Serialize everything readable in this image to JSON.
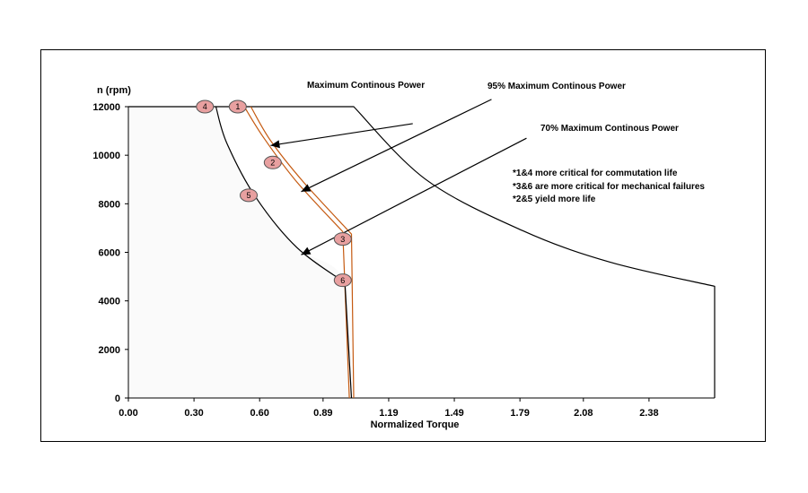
{
  "chart_data": {
    "type": "line",
    "xlabel": "Normalized Torque",
    "ylabel": "n (rpm)",
    "xlim": [
      0,
      2.68
    ],
    "ylim": [
      0,
      12000
    ],
    "x_ticks": [
      "0.00",
      "0.30",
      "0.60",
      "0.89",
      "1.19",
      "1.49",
      "1.79",
      "2.08",
      "2.38"
    ],
    "x_tick_values": [
      0,
      0.3,
      0.6,
      0.89,
      1.19,
      1.49,
      1.79,
      2.08,
      2.38
    ],
    "y_ticks": [
      "0",
      "2000",
      "4000",
      "6000",
      "8000",
      "10000",
      "12000"
    ],
    "y_tick_values": [
      0,
      2000,
      4000,
      6000,
      8000,
      10000,
      12000
    ],
    "grid": false,
    "series": [
      {
        "key": "envelope",
        "color": "#000000",
        "points": [
          [
            0,
            12000
          ],
          [
            1.03,
            12000
          ],
          [
            1.36,
            9000
          ],
          [
            1.8,
            6900
          ],
          [
            2.2,
            5600
          ],
          [
            2.68,
            4600
          ],
          [
            2.68,
            0
          ]
        ]
      },
      {
        "key": "max_continuous",
        "color": "#c55a11",
        "points": [
          [
            0.56,
            12000
          ],
          [
            0.65,
            10600
          ],
          [
            0.8,
            8900
          ],
          [
            1.02,
            6750
          ],
          [
            1.03,
            0
          ]
        ]
      },
      {
        "key": "p95",
        "color": "#c55a11",
        "points": [
          [
            0.53,
            12000
          ],
          [
            0.62,
            10700
          ],
          [
            0.77,
            8900
          ],
          [
            0.98,
            6850
          ],
          [
            1.01,
            0
          ]
        ]
      },
      {
        "key": "p70",
        "color": "#000000",
        "points": [
          [
            0.4,
            12000
          ],
          [
            0.45,
            10500
          ],
          [
            0.58,
            8300
          ],
          [
            0.77,
            6200
          ],
          [
            0.99,
            4750
          ],
          [
            1.02,
            0
          ]
        ]
      }
    ],
    "markers": [
      {
        "label": "1",
        "x": 0.5,
        "y": 12000
      },
      {
        "label": "2",
        "x": 0.66,
        "y": 9700
      },
      {
        "label": "3",
        "x": 0.98,
        "y": 6550
      },
      {
        "label": "4",
        "x": 0.35,
        "y": 12000
      },
      {
        "label": "5",
        "x": 0.55,
        "y": 8350
      },
      {
        "label": "6",
        "x": 0.98,
        "y": 4850
      }
    ],
    "marker_fill": "#e8a0a0",
    "annotations": [
      {
        "key": "a1",
        "text": "Maximum Continous Power",
        "x_from": 1.3,
        "y_from": 11300,
        "x_to": 0.65,
        "y_to": 10400
      },
      {
        "key": "a2",
        "text": "95% Maximum Continous Power",
        "x_from": 1.66,
        "y_from": 12300,
        "x_to": 0.79,
        "y_to": 8500
      },
      {
        "key": "a3",
        "text": "70% Maximum Continous Power",
        "x_from": 1.82,
        "y_from": 10700,
        "x_to": 0.79,
        "y_to": 5900
      }
    ],
    "notes": [
      "*1&4 more critical for commutation life",
      "*3&6 are more critical  for mechanical failures",
      "*2&5 yield more life"
    ]
  }
}
